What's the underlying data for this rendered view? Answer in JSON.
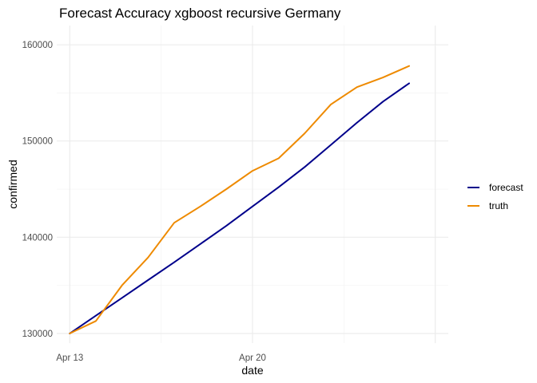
{
  "chart_data": {
    "type": "line",
    "title": "Forecast Accuracy xgboost recursive Germany",
    "xlabel": "date",
    "ylabel": "confirmed",
    "x": [
      "2020-04-13",
      "2020-04-14",
      "2020-04-15",
      "2020-04-16",
      "2020-04-17",
      "2020-04-18",
      "2020-04-19",
      "2020-04-20",
      "2020-04-21",
      "2020-04-22",
      "2020-04-23",
      "2020-04-24",
      "2020-04-25",
      "2020-04-26"
    ],
    "x_ticks": [
      {
        "date": "2020-04-13",
        "label": "Apr 13"
      },
      {
        "date": "2020-04-20",
        "label": "Apr 20"
      }
    ],
    "xlim": [
      "2020-04-12 12:00",
      "2020-04-27 12:00"
    ],
    "y_ticks": [
      130000,
      140000,
      150000,
      160000
    ],
    "ylim": [
      129000,
      162000
    ],
    "grid": true,
    "legend_position": "right",
    "series": [
      {
        "name": "forecast",
        "color": "#00008b",
        "values": [
          130000,
          131850,
          133700,
          135550,
          137400,
          139300,
          141200,
          143200,
          145200,
          147300,
          149600,
          151900,
          154100,
          156000
        ]
      },
      {
        "name": "truth",
        "color": "#ee8a00",
        "values": [
          130000,
          131300,
          135000,
          137900,
          141500,
          143200,
          145000,
          146900,
          148200,
          150800,
          153800,
          155600,
          156600,
          157800
        ]
      }
    ]
  }
}
